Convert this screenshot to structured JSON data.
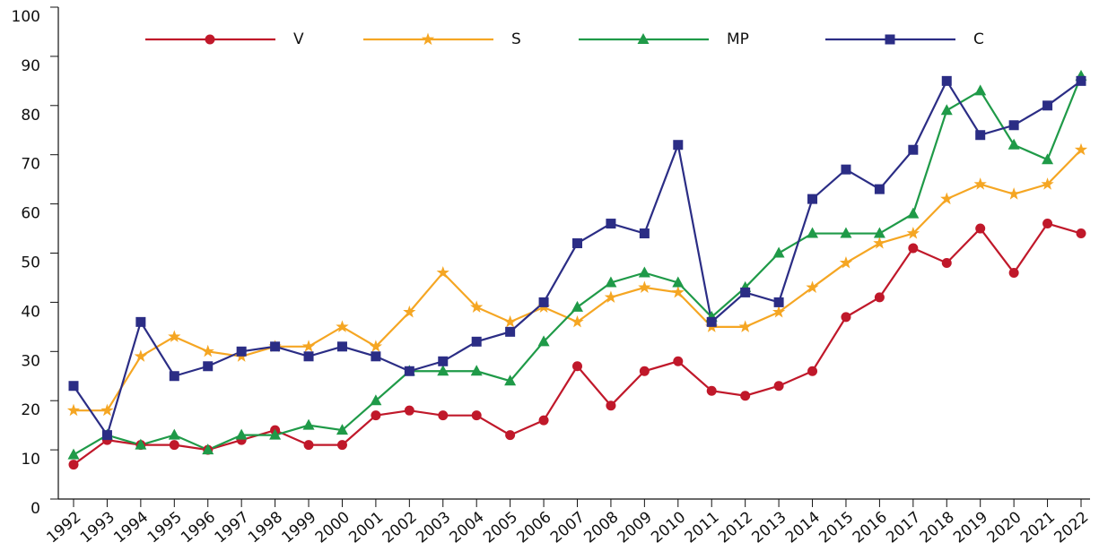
{
  "chart_data": {
    "type": "line",
    "x": [
      1992,
      1993,
      1994,
      1995,
      1996,
      1997,
      1998,
      1999,
      2000,
      2001,
      2002,
      2003,
      2004,
      2005,
      2006,
      2007,
      2008,
      2009,
      2010,
      2011,
      2012,
      2013,
      2014,
      2015,
      2016,
      2017,
      2018,
      2019,
      2020,
      2021,
      2022
    ],
    "xlim": [
      1992,
      2022
    ],
    "xticks": [
      1992,
      1993,
      1994,
      1995,
      1996,
      1997,
      1998,
      1999,
      2000,
      2001,
      2002,
      2003,
      2004,
      2005,
      2006,
      2007,
      2008,
      2009,
      2010,
      2011,
      2012,
      2013,
      2014,
      2015,
      2016,
      2017,
      2018,
      2019,
      2020,
      2021,
      2022
    ],
    "ylim": [
      0,
      100
    ],
    "yticks": [
      0,
      10,
      20,
      30,
      40,
      50,
      60,
      70,
      80,
      90,
      100
    ],
    "legend": "top",
    "series": [
      {
        "name": "V",
        "color": "#c0182a",
        "marker": "circle",
        "values": [
          7,
          12,
          11,
          11,
          10,
          12,
          14,
          11,
          11,
          17,
          18,
          17,
          17,
          13,
          16,
          27,
          19,
          26,
          28,
          22,
          21,
          23,
          26,
          37,
          41,
          51,
          48,
          55,
          46,
          56,
          54
        ]
      },
      {
        "name": "S",
        "color": "#f5a623",
        "marker": "star",
        "values": [
          18,
          18,
          29,
          33,
          30,
          29,
          31,
          31,
          35,
          31,
          38,
          46,
          39,
          36,
          39,
          36,
          41,
          43,
          42,
          35,
          35,
          38,
          43,
          48,
          52,
          54,
          61,
          64,
          62,
          64,
          71
        ]
      },
      {
        "name": "MP",
        "color": "#1f9a48",
        "marker": "triangle",
        "values": [
          9,
          13,
          11,
          13,
          10,
          13,
          13,
          15,
          14,
          20,
          26,
          26,
          26,
          24,
          32,
          39,
          44,
          46,
          44,
          37,
          43,
          50,
          54,
          54,
          54,
          58,
          79,
          83,
          72,
          69,
          86
        ]
      },
      {
        "name": "C",
        "color": "#2b2d85",
        "marker": "square",
        "values": [
          23,
          13,
          36,
          25,
          27,
          30,
          31,
          29,
          31,
          29,
          26,
          28,
          32,
          34,
          40,
          52,
          56,
          54,
          72,
          36,
          42,
          40,
          61,
          67,
          63,
          71,
          85,
          74,
          76,
          80,
          85
        ]
      }
    ]
  }
}
